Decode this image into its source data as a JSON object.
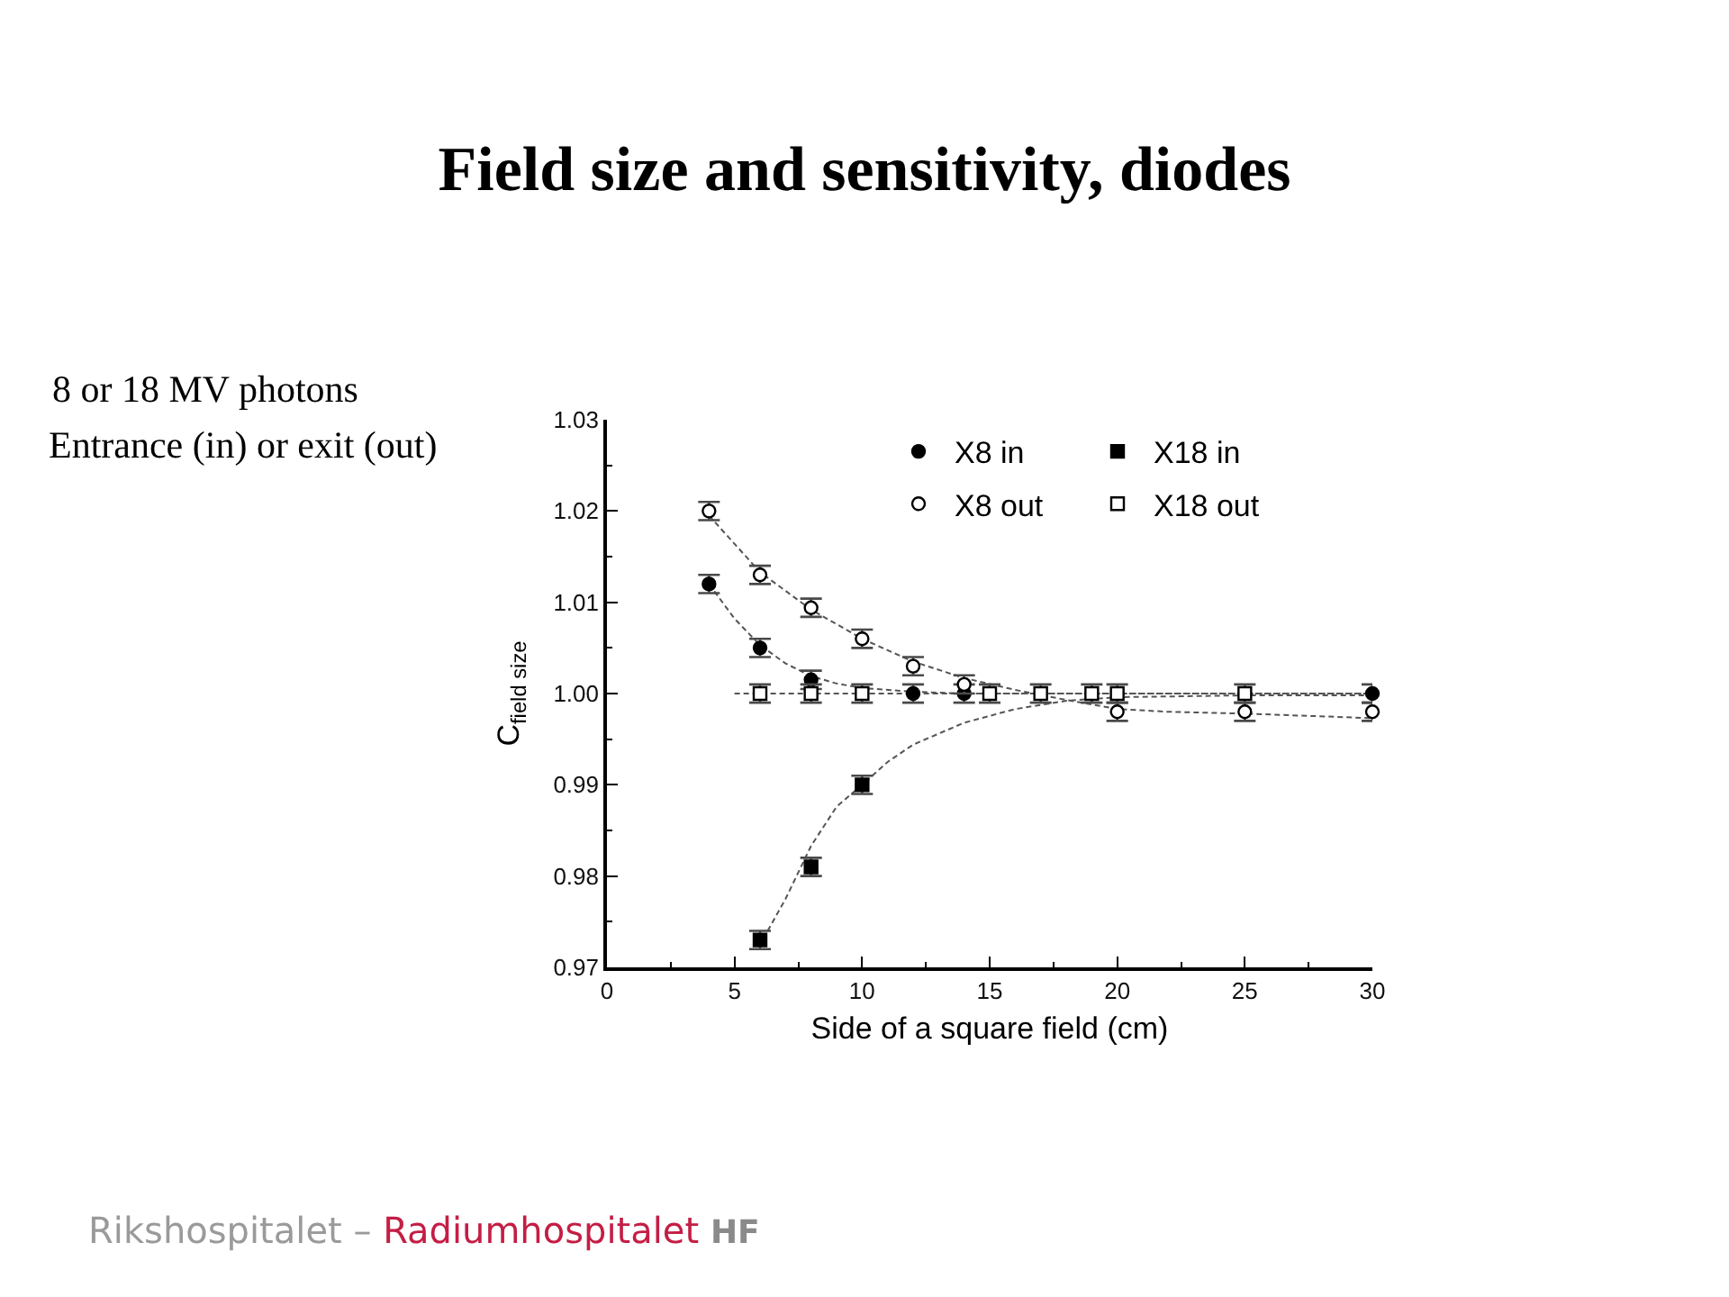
{
  "chart_data": {
    "type": "scatter",
    "title": "Field size and sensitivity, diodes",
    "xlabel": "Side of a square field (cm)",
    "ylabel": "C$_{field size}$",
    "annotations": [
      "8 or 18 MV photons",
      "Entrance (in) or exit (out)",
      "Rikshospitalet – Radiumhospitalet HF"
    ],
    "xlim": [
      0,
      30
    ],
    "xticks": [
      0,
      {
        "value": 2.5,
        "label": null
      },
      5,
      {
        "value": 7.5,
        "label": null
      },
      10,
      {
        "value": 12.5,
        "label": null
      },
      15,
      {
        "value": 17.5,
        "label": null
      },
      20,
      {
        "value": 22.5,
        "label": null
      },
      25,
      {
        "value": 27.5,
        "label": null
      },
      30
    ],
    "ylim": [
      0.97,
      1.03
    ],
    "yticks": [
      0.97,
      {
        "value": 0.975,
        "label": null
      },
      0.98,
      {
        "value": 0.985,
        "label": null
      },
      0.99,
      {
        "value": 0.995,
        "label": null
      },
      {
        "value": 1.0,
        "label": "1.00"
      },
      {
        "value": 1.005,
        "label": null
      },
      1.01,
      {
        "value": 1.015,
        "label": null
      },
      1.02,
      {
        "value": 1.025,
        "label": null
      },
      1.03
    ],
    "legend": "top right",
    "series": [
      {
        "type": "line",
        "color": "#555555",
        "line_style": "dashed",
        "marker": "none",
        "x": [
          4,
          6,
          8,
          10,
          12,
          14,
          16,
          18,
          20,
          22,
          25,
          30
        ],
        "values": [
          1.0195,
          1.0133,
          1.0092,
          1.006,
          1.0035,
          1.0017,
          1.0004,
          0.9993,
          0.9983,
          0.998,
          0.9978,
          0.9973
        ]
      },
      {
        "type": "line",
        "color": "#555555",
        "line_style": "dashed",
        "marker": "none",
        "x": [
          4,
          5,
          6,
          7,
          8,
          9,
          10,
          12,
          14,
          16,
          20,
          25,
          30
        ],
        "values": [
          1.012,
          1.0082,
          1.0053,
          1.0033,
          1.0019,
          1.0011,
          1.0006,
          1.0002,
          1.0,
          1.0,
          1.0,
          1.0,
          1.0
        ]
      },
      {
        "type": "line",
        "color": "#555555",
        "line_style": "dashed",
        "marker": "none",
        "x": [
          6.3,
          7,
          8,
          9,
          10,
          11,
          12,
          14,
          16,
          18,
          20,
          25,
          30
        ],
        "values": [
          0.974,
          0.9775,
          0.9833,
          0.9876,
          0.99,
          0.9925,
          0.9944,
          0.9968,
          0.9983,
          0.9992,
          0.9996,
          0.9998,
          0.9998
        ]
      },
      {
        "type": "line",
        "color": "#555555",
        "line_style": "dashed",
        "marker": "none",
        "x": [
          5,
          30
        ],
        "values": [
          1.0,
          1.0
        ]
      },
      {
        "name": "X8 in",
        "color": "#000000",
        "marker": "circle",
        "x": [
          4,
          6,
          8,
          12,
          14,
          30
        ],
        "values": [
          1.012,
          1.005,
          1.0015,
          1.0,
          1.0,
          1.0
        ],
        "errors": [
          0.001,
          0.001,
          0.001,
          0.001,
          0.001,
          0.001
        ]
      },
      {
        "name": "X8 out",
        "color": "#ffffff",
        "marker": "circle",
        "x": [
          4,
          6,
          8,
          10,
          12,
          14,
          20,
          25,
          30
        ],
        "values": [
          1.02,
          1.013,
          1.0094,
          1.006,
          1.003,
          1.001,
          0.998,
          0.998,
          0.998
        ],
        "errors": [
          0.001,
          0.001,
          0.001,
          0.001,
          0.001,
          0.001,
          0.001,
          0.001,
          0.001
        ]
      },
      {
        "name": "X18 in",
        "color": "#000000",
        "marker": "square",
        "x": [
          6,
          8,
          10
        ],
        "values": [
          0.973,
          0.981,
          0.99
        ],
        "errors": [
          0.001,
          0.001,
          0.001
        ]
      },
      {
        "name": "X18 out",
        "color": "#ffffff",
        "marker": "square",
        "x": [
          6,
          8,
          10,
          15,
          17,
          19,
          20,
          25
        ],
        "values": [
          1.0,
          1.0,
          1.0,
          1.0,
          1.0,
          1.0,
          1.0,
          1.0
        ],
        "errors": [
          0.001,
          0.001,
          0.001,
          0.001,
          0.001,
          0.001,
          0.001,
          0.001
        ]
      }
    ]
  }
}
